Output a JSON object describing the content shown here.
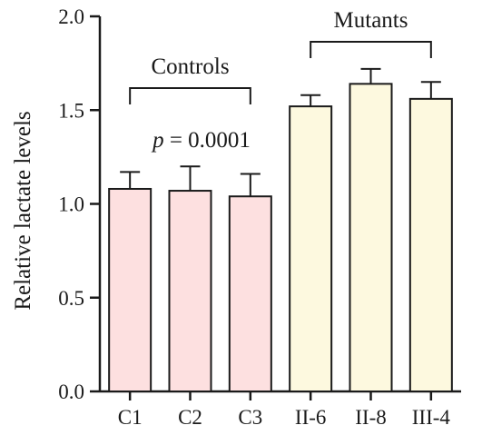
{
  "chart_data": {
    "type": "bar",
    "title": "",
    "xlabel": "",
    "ylabel": "Relative lactate levels",
    "ylim": [
      0,
      2.0
    ],
    "yticks": [
      "0.0",
      "0.5",
      "1.0",
      "1.5",
      "2.0"
    ],
    "ytick_values": [
      0,
      0.5,
      1.0,
      1.5,
      2.0
    ],
    "categories": [
      "C1",
      "C2",
      "C3",
      "II-6",
      "II-8",
      "III-4"
    ],
    "values": [
      1.08,
      1.07,
      1.04,
      1.52,
      1.64,
      1.56
    ],
    "errors": [
      0.09,
      0.13,
      0.12,
      0.06,
      0.08,
      0.09
    ],
    "bar_colors": [
      "#fde0e0",
      "#fde0e0",
      "#fde0e0",
      "#fdf9df",
      "#fdf9df",
      "#fdf9df"
    ],
    "groups": [
      {
        "label": "Controls",
        "from": 0,
        "to": 2
      },
      {
        "label": "Mutants",
        "from": 3,
        "to": 5
      }
    ],
    "annotation": {
      "p_symbol": "p",
      "text": " = 0.0001"
    },
    "grid": false,
    "legend": "none"
  }
}
